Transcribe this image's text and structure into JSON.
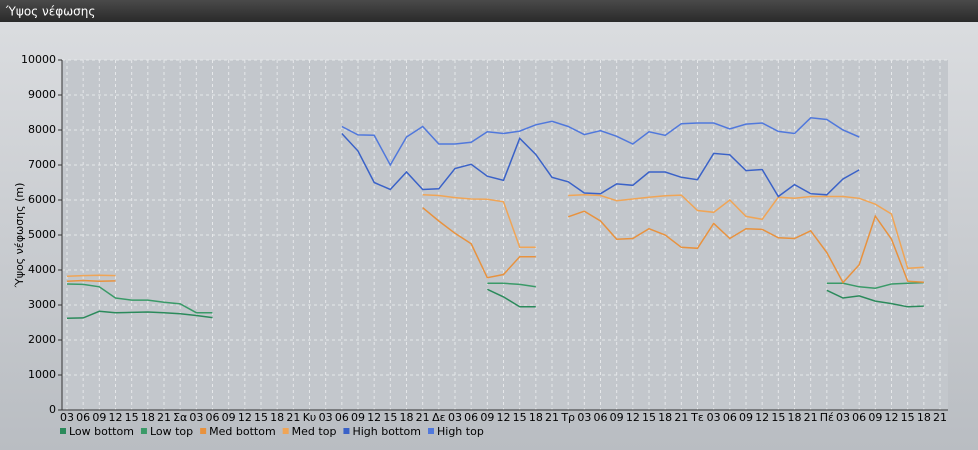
{
  "window_title": "Ύψος νέφωσης",
  "chart_data": {
    "type": "line",
    "y_label": "Ύψος νέφωσης (m)",
    "categories": [
      "03",
      "06",
      "09",
      "12",
      "15",
      "18",
      "21",
      "Σα",
      "03",
      "06",
      "09",
      "12",
      "15",
      "18",
      "21",
      "Κυ",
      "03",
      "06",
      "09",
      "12",
      "15",
      "18",
      "21",
      "Δε",
      "03",
      "06",
      "09",
      "12",
      "15",
      "18",
      "21",
      "Τρ",
      "03",
      "06",
      "09",
      "12",
      "15",
      "18",
      "21",
      "Τε",
      "03",
      "06",
      "09",
      "12",
      "15",
      "18",
      "21",
      "Πέ",
      "03",
      "06",
      "09",
      "12",
      "15",
      "18",
      "21"
    ],
    "ylim": [
      0,
      10000
    ],
    "yticks": [
      0,
      1000,
      2000,
      3000,
      4000,
      5000,
      6000,
      7000,
      8000,
      9000,
      10000
    ],
    "grid": true,
    "legend": "bottom-left",
    "series": [
      {
        "name": "Low bottom",
        "color": "#2b8a5b",
        "values": [
          2620,
          2630,
          2820,
          2780,
          2790,
          2800,
          2780,
          2750,
          2700,
          2640,
          null,
          null,
          null,
          null,
          null,
          null,
          null,
          null,
          null,
          null,
          null,
          null,
          null,
          null,
          null,
          null,
          3450,
          3230,
          2950,
          2950,
          null,
          null,
          null,
          null,
          null,
          null,
          null,
          null,
          null,
          null,
          null,
          null,
          null,
          null,
          null,
          null,
          null,
          3420,
          3200,
          3260,
          3110,
          3040,
          2950,
          2970,
          null
        ]
      },
      {
        "name": "Low top",
        "color": "#3a9a68",
        "values": [
          3600,
          3590,
          3520,
          3200,
          3140,
          3140,
          3080,
          3030,
          2780,
          2780,
          null,
          null,
          null,
          null,
          null,
          null,
          null,
          null,
          null,
          null,
          null,
          null,
          null,
          null,
          null,
          null,
          3620,
          3620,
          3590,
          3520,
          null,
          null,
          null,
          null,
          null,
          null,
          null,
          null,
          null,
          null,
          null,
          null,
          null,
          null,
          null,
          null,
          null,
          3620,
          3620,
          3520,
          3480,
          3600,
          3620,
          3640,
          null
        ]
      },
      {
        "name": "Med bottom",
        "color": "#e8923e",
        "values": [
          3680,
          3700,
          3680,
          3690,
          null,
          null,
          null,
          null,
          null,
          null,
          null,
          null,
          null,
          null,
          null,
          null,
          null,
          null,
          null,
          null,
          null,
          null,
          5780,
          5400,
          5050,
          4750,
          3780,
          3870,
          4380,
          4380,
          null,
          5520,
          5680,
          5400,
          4880,
          4900,
          5180,
          5000,
          4650,
          4620,
          5330,
          4900,
          5180,
          5160,
          4920,
          4900,
          5120,
          4500,
          3640,
          4150,
          5540,
          4880,
          3680,
          3650,
          null
        ]
      },
      {
        "name": "Med top",
        "color": "#f0a556",
        "values": [
          3820,
          3840,
          3850,
          3840,
          null,
          null,
          null,
          null,
          null,
          null,
          null,
          null,
          null,
          null,
          null,
          null,
          null,
          null,
          null,
          null,
          null,
          null,
          6150,
          6130,
          6070,
          6030,
          6020,
          5950,
          4650,
          4650,
          null,
          6130,
          6150,
          6130,
          5980,
          6030,
          6080,
          6120,
          6140,
          5700,
          5650,
          6000,
          5530,
          5450,
          6080,
          6050,
          6100,
          6100,
          6100,
          6050,
          5880,
          5600,
          4050,
          4080,
          null
        ]
      },
      {
        "name": "High bottom",
        "color": "#3a62c8",
        "values": [
          null,
          null,
          null,
          null,
          null,
          null,
          null,
          null,
          null,
          null,
          null,
          null,
          null,
          null,
          null,
          null,
          null,
          7900,
          7400,
          6500,
          6300,
          6800,
          6300,
          6320,
          6900,
          7020,
          6680,
          6560,
          7760,
          7300,
          6650,
          6520,
          6200,
          6180,
          6460,
          6420,
          6800,
          6800,
          6650,
          6580,
          7330,
          7290,
          6840,
          6870,
          6100,
          6440,
          6180,
          6150,
          6600,
          6860,
          null,
          null,
          null,
          null,
          null
        ]
      },
      {
        "name": "High top",
        "color": "#5078dc",
        "values": [
          null,
          null,
          null,
          null,
          null,
          null,
          null,
          null,
          null,
          null,
          null,
          null,
          null,
          null,
          null,
          null,
          null,
          8100,
          7860,
          7850,
          7000,
          7800,
          8100,
          7600,
          7600,
          7650,
          7950,
          7900,
          7970,
          8150,
          8250,
          8100,
          7870,
          7980,
          7820,
          7600,
          7950,
          7850,
          8180,
          8200,
          8200,
          8030,
          8170,
          8200,
          7960,
          7900,
          8350,
          8300,
          8000,
          7800,
          null,
          null,
          null,
          null,
          null
        ]
      }
    ]
  }
}
